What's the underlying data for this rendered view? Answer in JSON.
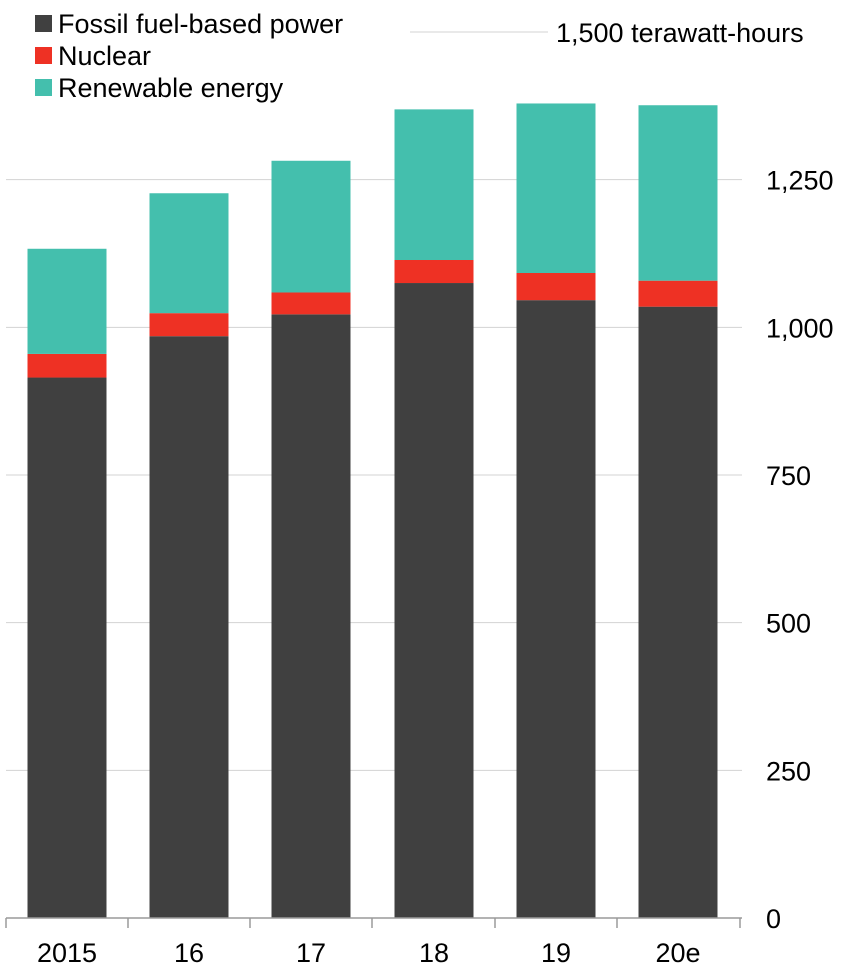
{
  "chart_data": {
    "type": "bar",
    "stacked": true,
    "categories": [
      "2015",
      "16",
      "17",
      "18",
      "19",
      "20e"
    ],
    "series": [
      {
        "name": "Fossil fuel-based power",
        "color": "#404040",
        "values": [
          915,
          985,
          1022,
          1075,
          1046,
          1035
        ]
      },
      {
        "name": "Nuclear",
        "color": "#ee3124",
        "values": [
          40,
          39,
          37,
          39,
          46,
          44
        ]
      },
      {
        "name": "Renewable energy",
        "color": "#44bfad",
        "values": [
          178,
          203,
          223,
          255,
          287,
          297
        ]
      }
    ],
    "y_ticks": [
      {
        "value": 0,
        "label": "0"
      },
      {
        "value": 250,
        "label": "250"
      },
      {
        "value": 500,
        "label": "500"
      },
      {
        "value": 750,
        "label": "750"
      },
      {
        "value": 1000,
        "label": "1,000"
      },
      {
        "value": 1250,
        "label": "1,250"
      },
      {
        "value": 1500,
        "label": "1,500 terawatt-hours"
      }
    ],
    "ylim": [
      0,
      1500
    ],
    "grid": true,
    "y_axis_side": "right",
    "legend_position": "top-left"
  }
}
